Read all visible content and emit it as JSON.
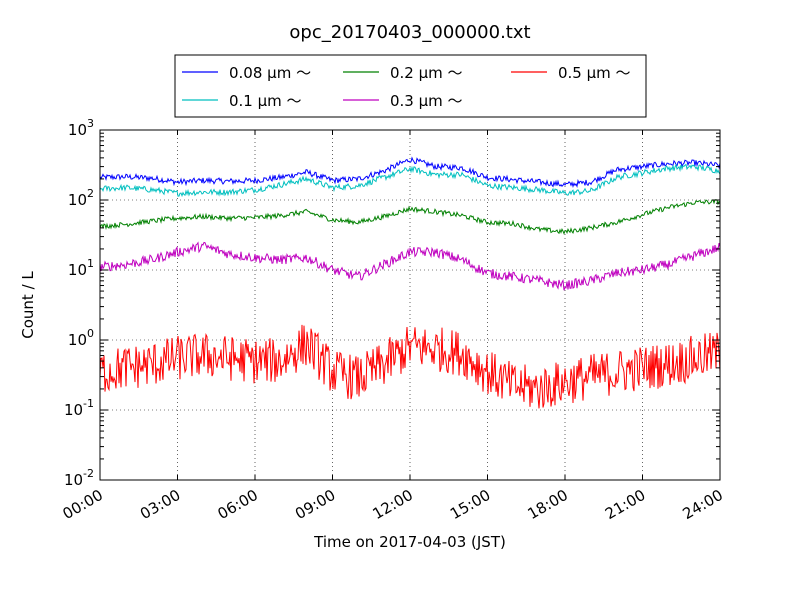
{
  "chart_data": {
    "type": "line",
    "title": "opc_20170403_000000.txt",
    "xlabel": "Time on 2017-04-03 (JST)",
    "ylabel": "Count / L",
    "x_ticks": [
      "00:00",
      "03:00",
      "06:00",
      "09:00",
      "12:00",
      "15:00",
      "18:00",
      "21:00",
      "24:00"
    ],
    "xlim": [
      "00:00",
      "24:00"
    ],
    "y_scale": "log",
    "ylim": [
      0.01,
      1000
    ],
    "y_ticks": [
      {
        "base": "10",
        "exp": "-2"
      },
      {
        "base": "10",
        "exp": "-1"
      },
      {
        "base": "10",
        "exp": "0"
      },
      {
        "base": "10",
        "exp": "1"
      },
      {
        "base": "10",
        "exp": "2"
      },
      {
        "base": "10",
        "exp": "3"
      }
    ],
    "grid": true,
    "legend_placement": "top-center",
    "x_hours": [
      0,
      1,
      2,
      3,
      4,
      5,
      6,
      7,
      8,
      9,
      10,
      11,
      12,
      13,
      14,
      15,
      16,
      17,
      18,
      19,
      20,
      21,
      22,
      23,
      24
    ],
    "series": [
      {
        "name": "0.08 μm ～",
        "color": "#0000ff",
        "noise": 0.03,
        "values": [
          210,
          215,
          205,
          180,
          190,
          185,
          190,
          210,
          250,
          190,
          200,
          260,
          380,
          300,
          290,
          210,
          195,
          180,
          165,
          180,
          270,
          300,
          330,
          340,
          310
        ]
      },
      {
        "name": "0.1 μm ～",
        "color": "#00bfbf",
        "noise": 0.03,
        "values": [
          145,
          150,
          140,
          125,
          130,
          130,
          140,
          165,
          200,
          150,
          160,
          210,
          280,
          230,
          230,
          160,
          150,
          140,
          125,
          135,
          210,
          245,
          285,
          300,
          260
        ]
      },
      {
        "name": "0.2 μm ～",
        "color": "#008000",
        "noise": 0.025,
        "values": [
          42,
          45,
          50,
          55,
          58,
          55,
          56,
          60,
          68,
          52,
          48,
          58,
          75,
          68,
          60,
          48,
          46,
          38,
          35,
          40,
          48,
          62,
          78,
          92,
          95
        ]
      },
      {
        "name": "0.3 μm ～",
        "color": "#bf00bf",
        "noise": 0.05,
        "values": [
          11,
          12,
          14,
          18,
          22,
          17,
          15,
          14,
          15,
          10,
          8,
          12,
          18,
          18,
          14,
          9,
          8,
          7,
          6,
          7,
          9,
          10,
          12,
          16,
          21
        ]
      },
      {
        "name": "0.5 μm ～",
        "color": "#ff0000",
        "noise": 0.15,
        "values": [
          0.35,
          0.4,
          0.45,
          0.55,
          0.6,
          0.55,
          0.5,
          0.5,
          0.9,
          0.35,
          0.28,
          0.45,
          0.8,
          0.75,
          0.65,
          0.35,
          0.22,
          0.2,
          0.25,
          0.3,
          0.35,
          0.4,
          0.45,
          0.55,
          0.65
        ]
      }
    ]
  }
}
